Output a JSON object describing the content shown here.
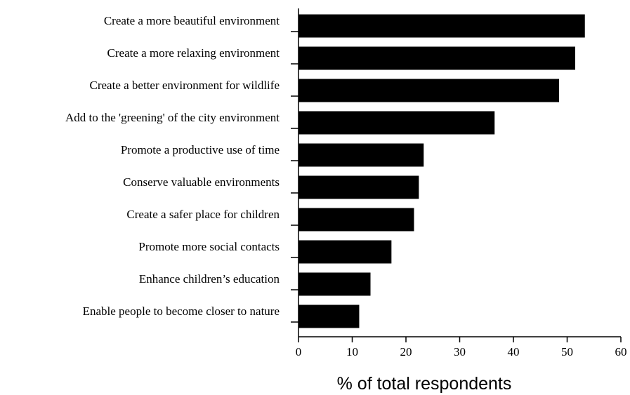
{
  "chart_data": {
    "type": "bar",
    "orientation": "horizontal",
    "categories": [
      "Create a more beautiful environment",
      "Create a more relaxing environment",
      "Create a better environment for wildlife",
      "Add to the 'greening' of the city environment",
      "Promote a productive use of time",
      "Conserve valuable environments",
      "Create a safer place for children",
      "Promote more social contacts",
      "Enhance children’s education",
      "Enable people to become closer to nature"
    ],
    "values": [
      53.3,
      51.5,
      48.5,
      36.5,
      23.3,
      22.4,
      21.5,
      17.3,
      13.4,
      11.3
    ],
    "title": "",
    "xlabel": "% of total respondents",
    "ylabel": "",
    "xlim": [
      0,
      60
    ],
    "xticks": [
      "0",
      "10",
      "20",
      "30",
      "40",
      "50",
      "60"
    ],
    "grid": false,
    "legend": "none",
    "bar_color": "#000000"
  }
}
